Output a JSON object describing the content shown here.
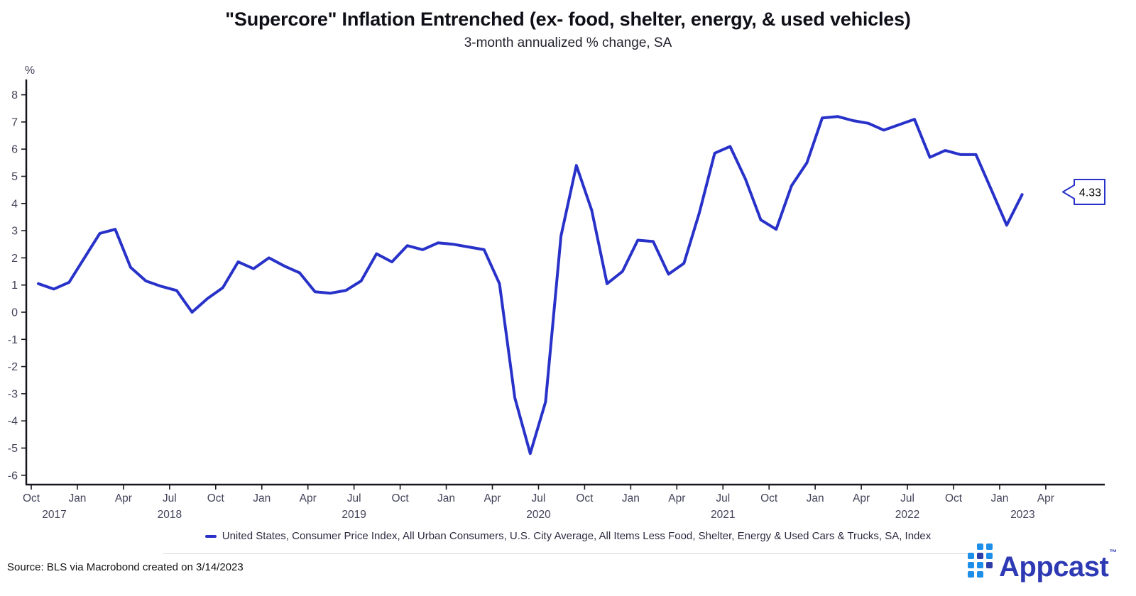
{
  "title": "\"Supercore\" Inflation Entrenched (ex- food, shelter, energy, & used vehicles)",
  "subtitle": "3-month annualized % change, SA",
  "y_axis": {
    "unit_label": "%",
    "ticks": [
      8,
      7,
      6,
      5,
      4,
      3,
      2,
      1,
      0,
      -1,
      -2,
      -3,
      -4,
      -5,
      -6
    ]
  },
  "x_axis": {
    "quarter_ticks": [
      {
        "m": 0,
        "label": "Oct"
      },
      {
        "m": 3,
        "label": "Jan"
      },
      {
        "m": 6,
        "label": "Apr"
      },
      {
        "m": 9,
        "label": "Jul"
      },
      {
        "m": 12,
        "label": "Oct"
      },
      {
        "m": 15,
        "label": "Jan"
      },
      {
        "m": 18,
        "label": "Apr"
      },
      {
        "m": 21,
        "label": "Jul"
      },
      {
        "m": 24,
        "label": "Oct"
      },
      {
        "m": 27,
        "label": "Jan"
      },
      {
        "m": 30,
        "label": "Apr"
      },
      {
        "m": 33,
        "label": "Jul"
      },
      {
        "m": 36,
        "label": "Oct"
      },
      {
        "m": 39,
        "label": "Jan"
      },
      {
        "m": 42,
        "label": "Apr"
      },
      {
        "m": 45,
        "label": "Jul"
      },
      {
        "m": 48,
        "label": "Oct"
      },
      {
        "m": 51,
        "label": "Jan"
      },
      {
        "m": 54,
        "label": "Apr"
      },
      {
        "m": 57,
        "label": "Jul"
      },
      {
        "m": 60,
        "label": "Oct"
      },
      {
        "m": 63,
        "label": "Jan"
      },
      {
        "m": 66,
        "label": "Apr"
      }
    ],
    "year_labels": [
      {
        "m": 1.5,
        "label": "2017"
      },
      {
        "m": 9,
        "label": "2018"
      },
      {
        "m": 21,
        "label": "2019"
      },
      {
        "m": 33,
        "label": "2020"
      },
      {
        "m": 45,
        "label": "2021"
      },
      {
        "m": 57,
        "label": "2022"
      },
      {
        "m": 64.5,
        "label": "2023"
      }
    ]
  },
  "chart_data": {
    "type": "line",
    "title": "\"Supercore\" Inflation Entrenched (ex- food, shelter, energy, & used vehicles)",
    "subtitle": "3-month annualized % change, SA",
    "ylabel": "%",
    "ylim": [
      -6,
      8
    ],
    "grid": false,
    "frequency": "monthly",
    "x_start": "Oct 2017",
    "x_end": "Feb 2023",
    "series": [
      {
        "name": "United States, Consumer Price Index, All Urban Consumers, U.S. City Average, All Items Less Food, Shelter, Energy & Used Cars & Trucks, SA, Index",
        "color": "#2832c9",
        "values": [
          1.05,
          0.85,
          1.1,
          2.0,
          2.9,
          3.05,
          1.65,
          1.15,
          0.95,
          0.8,
          0.0,
          0.5,
          0.9,
          1.85,
          1.6,
          2.0,
          1.7,
          1.45,
          0.75,
          0.7,
          0.8,
          1.15,
          2.15,
          1.85,
          2.45,
          2.3,
          2.55,
          2.5,
          2.4,
          2.3,
          1.05,
          -3.15,
          -5.2,
          -3.3,
          2.8,
          5.4,
          3.75,
          1.05,
          1.5,
          2.65,
          2.6,
          1.4,
          1.8,
          3.65,
          5.85,
          6.1,
          4.9,
          3.4,
          3.05,
          4.65,
          5.5,
          7.15,
          7.2,
          7.05,
          6.95,
          6.7,
          6.9,
          7.1,
          5.7,
          5.95,
          5.8,
          5.8,
          4.5,
          3.2,
          4.33
        ]
      }
    ],
    "callout_label": "4.33",
    "legend_position": "bottom"
  },
  "legend": {
    "label": "United States, Consumer Price Index, All Urban Consumers, U.S. City Average, All Items Less Food, Shelter, Energy & Used Cars & Trucks, SA, Index"
  },
  "footer": {
    "source": "Source: BLS via Macrobond created on 3/14/2023"
  },
  "logo": {
    "word": "Appcast",
    "tm": "™",
    "color_azure": "#1e8fe8",
    "color_navy": "#2d3ea8"
  },
  "colors": {
    "line": "#2832c9",
    "axis": "#17171f",
    "tick_text": "#43435a",
    "callout_border": "#2832c9"
  }
}
